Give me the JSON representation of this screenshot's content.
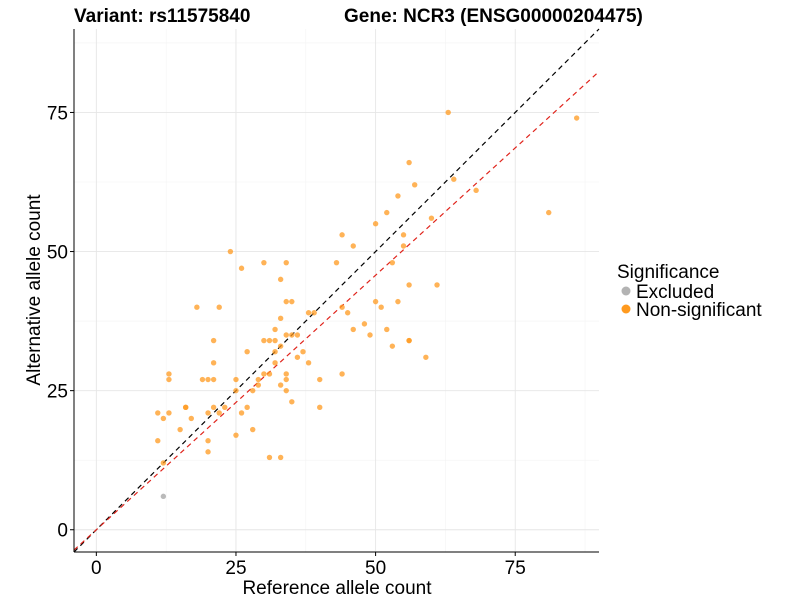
{
  "titles": {
    "variant": "Variant: rs11575840",
    "gene": "Gene: NCR3 (ENSG00000204475)"
  },
  "chart_data": {
    "type": "scatter",
    "xlabel": "Reference allele count",
    "ylabel": "Alternative allele count",
    "xlim": [
      -4,
      90
    ],
    "ylim": [
      -4,
      90
    ],
    "x_ticks": [
      0,
      25,
      50,
      75
    ],
    "y_ticks": [
      0,
      25,
      50,
      75
    ],
    "grid": true,
    "legend_position": "right",
    "legend_title": "Significance",
    "series": [
      {
        "name": "Excluded",
        "color": "#b3b3b3",
        "points": [
          [
            12,
            6
          ]
        ]
      },
      {
        "name": "Non-significant",
        "color": "#ff9a1f",
        "points": [
          [
            11,
            21
          ],
          [
            11,
            16
          ],
          [
            12,
            20
          ],
          [
            12,
            12
          ],
          [
            13,
            28
          ],
          [
            13,
            27
          ],
          [
            13,
            21
          ],
          [
            15,
            18
          ],
          [
            16,
            22
          ],
          [
            16,
            22
          ],
          [
            17,
            20
          ],
          [
            18,
            40
          ],
          [
            19,
            27
          ],
          [
            20,
            27
          ],
          [
            20,
            21
          ],
          [
            20,
            16
          ],
          [
            20,
            14
          ],
          [
            21,
            34
          ],
          [
            21,
            30
          ],
          [
            21,
            27
          ],
          [
            21,
            22
          ],
          [
            22,
            40
          ],
          [
            22,
            21
          ],
          [
            23,
            22
          ],
          [
            24,
            50
          ],
          [
            25,
            27
          ],
          [
            25,
            25
          ],
          [
            25,
            17
          ],
          [
            26,
            47
          ],
          [
            26,
            21
          ],
          [
            27,
            32
          ],
          [
            27,
            22
          ],
          [
            28,
            18
          ],
          [
            28,
            25
          ],
          [
            29,
            26
          ],
          [
            29,
            27
          ],
          [
            30,
            48
          ],
          [
            30,
            34
          ],
          [
            30,
            28
          ],
          [
            31,
            34
          ],
          [
            31,
            28
          ],
          [
            31,
            13
          ],
          [
            32,
            34
          ],
          [
            32,
            32
          ],
          [
            32,
            36
          ],
          [
            32,
            30
          ],
          [
            33,
            45
          ],
          [
            33,
            38
          ],
          [
            33,
            33
          ],
          [
            33,
            26
          ],
          [
            33,
            13
          ],
          [
            34,
            48
          ],
          [
            34,
            41
          ],
          [
            34,
            35
          ],
          [
            34,
            28
          ],
          [
            34,
            27
          ],
          [
            34,
            25
          ],
          [
            35,
            41
          ],
          [
            35,
            35
          ],
          [
            35,
            23
          ],
          [
            36,
            31
          ],
          [
            36,
            35
          ],
          [
            37,
            32
          ],
          [
            38,
            30
          ],
          [
            38,
            39
          ],
          [
            39,
            39
          ],
          [
            40,
            27
          ],
          [
            40,
            22
          ],
          [
            43,
            48
          ],
          [
            44,
            53
          ],
          [
            44,
            40
          ],
          [
            44,
            28
          ],
          [
            45,
            39
          ],
          [
            46,
            51
          ],
          [
            46,
            36
          ],
          [
            48,
            37
          ],
          [
            49,
            35
          ],
          [
            50,
            55
          ],
          [
            50,
            41
          ],
          [
            51,
            40
          ],
          [
            52,
            57
          ],
          [
            52,
            36
          ],
          [
            53,
            48
          ],
          [
            53,
            33
          ],
          [
            54,
            60
          ],
          [
            54,
            41
          ],
          [
            55,
            53
          ],
          [
            55,
            51
          ],
          [
            56,
            66
          ],
          [
            56,
            44
          ],
          [
            56,
            34
          ],
          [
            56,
            34
          ],
          [
            57,
            62
          ],
          [
            59,
            31
          ],
          [
            60,
            56
          ],
          [
            61,
            44
          ],
          [
            63,
            75
          ],
          [
            64,
            63
          ],
          [
            68,
            61
          ],
          [
            81,
            57
          ],
          [
            86,
            74
          ]
        ]
      }
    ],
    "reference_lines": [
      {
        "name": "identity",
        "slope": 1,
        "intercept": 0,
        "color": "#000000",
        "dash": "dashed"
      },
      {
        "name": "fitted",
        "slope": 0.915,
        "intercept": 0,
        "color": "#e0231b",
        "dash": "dashed"
      }
    ]
  }
}
